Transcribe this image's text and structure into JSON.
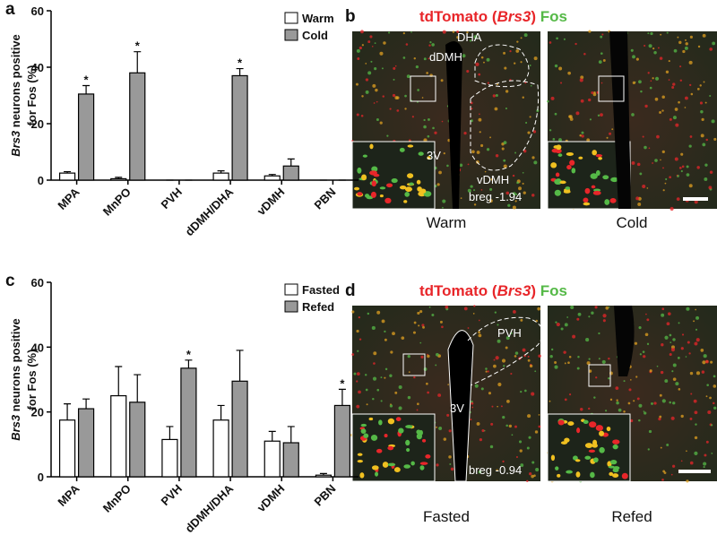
{
  "chart_data": [
    {
      "type": "bar",
      "panel": "a",
      "ylabel": {
        "italic": "Brs3",
        "rest": "neurons positive",
        "line2": "for Fos (%)"
      },
      "categories": [
        "MPA",
        "MnPO",
        "PVH",
        "dDMH/DHA",
        "vDMH",
        "PBN"
      ],
      "series": [
        {
          "name": "Warm",
          "color": "#ffffff",
          "values": [
            2.5,
            0.5,
            0,
            2.5,
            1.5,
            0
          ],
          "errors": [
            0.5,
            0.5,
            0,
            0.8,
            0.5,
            0
          ],
          "annotations": [
            null,
            null,
            null,
            null,
            null,
            null
          ]
        },
        {
          "name": "Cold",
          "color": "#999999",
          "values": [
            30.5,
            38,
            0,
            37,
            5,
            0
          ],
          "errors": [
            3,
            7.5,
            0,
            2.5,
            2.5,
            0
          ],
          "annotations": [
            "*",
            "*",
            null,
            "*",
            null,
            null
          ]
        }
      ],
      "ylim": [
        0,
        60
      ],
      "yticks": [
        0,
        20,
        40,
        60
      ],
      "legend": "top-right"
    },
    {
      "type": "bar",
      "panel": "c",
      "ylabel": {
        "italic": "Brs3",
        "rest": "neurons positive",
        "line2": "for Fos (%)"
      },
      "categories": [
        "MPA",
        "MnPO",
        "PVH",
        "dDMH/DHA",
        "vDMH",
        "PBN"
      ],
      "series": [
        {
          "name": "Fasted",
          "color": "#ffffff",
          "values": [
            17.5,
            25,
            11.5,
            17.5,
            11,
            0.5
          ],
          "errors": [
            5,
            9,
            4,
            4.5,
            3,
            0.5
          ],
          "annotations": [
            null,
            null,
            null,
            null,
            null,
            null
          ]
        },
        {
          "name": "Refed",
          "color": "#999999",
          "values": [
            21,
            23,
            33.5,
            29.5,
            10.5,
            22
          ],
          "errors": [
            3,
            8.5,
            2.5,
            9.5,
            5,
            5
          ],
          "annotations": [
            null,
            null,
            "*",
            null,
            null,
            "*"
          ]
        }
      ],
      "ylim": [
        0,
        60
      ],
      "yticks": [
        0,
        20,
        40,
        60
      ],
      "legend": "top-right"
    }
  ],
  "panels": [
    {
      "letter": "b",
      "title": {
        "red": "tdTomato (",
        "italic": "Brs3",
        "close": ")",
        "green": "Fos"
      },
      "images": [
        {
          "caption": "Warm",
          "labels": [
            "DHA",
            "dDMH",
            "3V",
            "vDMH"
          ],
          "bregma": "breg -1.94"
        },
        {
          "caption": "Cold"
        }
      ]
    },
    {
      "letter": "d",
      "title": {
        "red": "tdTomato (",
        "italic": "Brs3",
        "close": ")",
        "green": "Fos"
      },
      "images": [
        {
          "caption": "Fasted",
          "labels": [
            "PVH",
            "3V"
          ],
          "bregma": "breg -0.94"
        },
        {
          "caption": "Refed"
        }
      ]
    }
  ]
}
